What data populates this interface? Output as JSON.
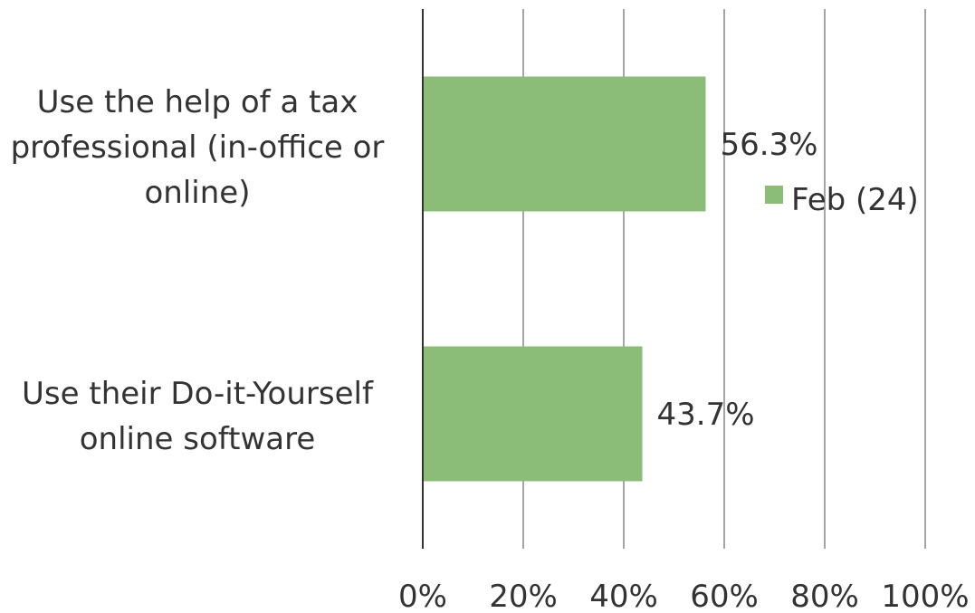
{
  "chart_data": {
    "type": "bar",
    "orientation": "horizontal",
    "categories": [
      "Use the help of a tax\nprofessional (in-office or\nonline)",
      "Use their Do-it-Yourself\nonline software"
    ],
    "series": [
      {
        "name": "Feb (24)",
        "values": [
          56.3,
          43.7
        ],
        "color": "#8bbd79"
      }
    ],
    "data_labels": [
      "56.3%",
      "43.7%"
    ],
    "x_ticks": [
      "0%",
      "20%",
      "40%",
      "60%",
      "80%",
      "100%"
    ],
    "xlim": [
      0,
      100
    ],
    "grid": true,
    "legend_position": "right",
    "title": "",
    "xlabel": "",
    "ylabel": ""
  }
}
